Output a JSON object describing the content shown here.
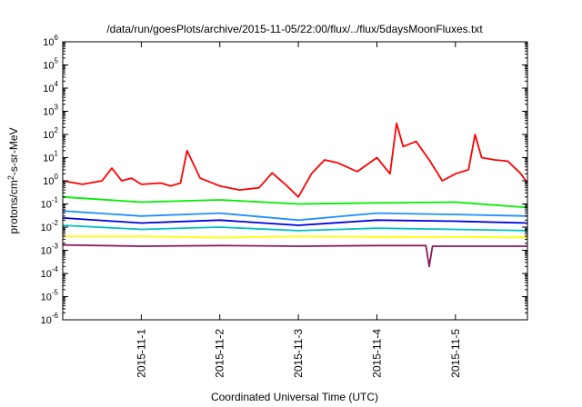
{
  "chart_data": {
    "type": "line",
    "title": "/data/run/goesPlots/archive/2015-11-05/22:00/flux/../flux/5daysMoonFluxes.txt",
    "xlabel": "Coordinated Universal Time (UTC)",
    "ylabel": "protons/cm2-s-sr-MeV",
    "yscale": "log",
    "ylim": [
      1e-06,
      1000000.0
    ],
    "xlim": [
      "2015-10-31T00:00",
      "2015-11-05T22:00"
    ],
    "x_ticks": [
      "2015-11-1",
      "2015-11-2",
      "2015-11-3",
      "2015-11-4",
      "2015-11-5"
    ],
    "y_ticks": [
      {
        "base": "10",
        "exp": "-6"
      },
      {
        "base": "10",
        "exp": "-5"
      },
      {
        "base": "10",
        "exp": "-4"
      },
      {
        "base": "10",
        "exp": "-3"
      },
      {
        "base": "10",
        "exp": "-2"
      },
      {
        "base": "10",
        "exp": "-1"
      },
      {
        "base": "10",
        "exp": "0"
      },
      {
        "base": "10",
        "exp": "1"
      },
      {
        "base": "10",
        "exp": "2"
      },
      {
        "base": "10",
        "exp": "3"
      },
      {
        "base": "10",
        "exp": "4"
      },
      {
        "base": "10",
        "exp": "5"
      },
      {
        "base": "10",
        "exp": "6"
      }
    ],
    "grid": false,
    "legend": "none",
    "series": [
      {
        "color": "#ff0000",
        "x": [
          "2015-10-31T00:00",
          "2015-10-31T06:00",
          "2015-10-31T12:00",
          "2015-10-31T15:00",
          "2015-10-31T18:00",
          "2015-10-31T21:00",
          "2015-11-01T00:00",
          "2015-11-01T06:00",
          "2015-11-01T09:00",
          "2015-11-01T12:00",
          "2015-11-01T14:00",
          "2015-11-01T18:00",
          "2015-11-02T00:00",
          "2015-11-02T06:00",
          "2015-11-02T12:00",
          "2015-11-02T16:00",
          "2015-11-02T20:00",
          "2015-11-03T00:00",
          "2015-11-03T04:00",
          "2015-11-03T08:00",
          "2015-11-03T12:00",
          "2015-11-03T18:00",
          "2015-11-04T00:00",
          "2015-11-04T04:00",
          "2015-11-04T06:00",
          "2015-11-04T08:00",
          "2015-11-04T12:00",
          "2015-11-04T16:00",
          "2015-11-04T20:00",
          "2015-11-05T00:00",
          "2015-11-05T04:00",
          "2015-11-05T06:00",
          "2015-11-05T08:00",
          "2015-11-05T12:00",
          "2015-11-05T16:00",
          "2015-11-05T20:00",
          "2015-11-05T22:00"
        ],
        "values": [
          1.0,
          0.7,
          1.0,
          3.5,
          1.0,
          1.3,
          0.7,
          0.8,
          0.6,
          0.8,
          20,
          1.3,
          0.6,
          0.4,
          0.5,
          2.2,
          0.7,
          0.2,
          2.0,
          8,
          6,
          2.5,
          10,
          2.0,
          300,
          30,
          50,
          8,
          1.0,
          2.0,
          3,
          100,
          10,
          8,
          7,
          2.0,
          0.8
        ]
      },
      {
        "color": "#00ee00",
        "x": [
          "2015-10-31T00:00",
          "2015-11-01T00:00",
          "2015-11-02T00:00",
          "2015-11-03T00:00",
          "2015-11-04T00:00",
          "2015-11-05T00:00",
          "2015-11-05T22:00"
        ],
        "values": [
          0.2,
          0.12,
          0.15,
          0.1,
          0.11,
          0.12,
          0.07
        ]
      },
      {
        "color": "#1e90ff",
        "x": [
          "2015-10-31T00:00",
          "2015-11-01T00:00",
          "2015-11-02T00:00",
          "2015-11-03T00:00",
          "2015-11-04T00:00",
          "2015-11-05T00:00",
          "2015-11-05T22:00"
        ],
        "values": [
          0.05,
          0.03,
          0.04,
          0.02,
          0.04,
          0.035,
          0.03
        ]
      },
      {
        "color": "#0000dd",
        "x": [
          "2015-10-31T00:00",
          "2015-11-01T00:00",
          "2015-11-02T00:00",
          "2015-11-03T00:00",
          "2015-11-04T00:00",
          "2015-11-05T00:00",
          "2015-11-05T22:00"
        ],
        "values": [
          0.025,
          0.015,
          0.02,
          0.012,
          0.02,
          0.018,
          0.015
        ]
      },
      {
        "color": "#00c0c0",
        "x": [
          "2015-10-31T00:00",
          "2015-11-01T00:00",
          "2015-11-02T00:00",
          "2015-11-03T00:00",
          "2015-11-04T00:00",
          "2015-11-05T00:00",
          "2015-11-05T22:00"
        ],
        "values": [
          0.012,
          0.008,
          0.01,
          0.007,
          0.009,
          0.008,
          0.007
        ]
      },
      {
        "color": "#ffff00",
        "x": [
          "2015-10-31T00:00",
          "2015-11-01T00:00",
          "2015-11-02T00:00",
          "2015-11-03T00:00",
          "2015-11-04T00:00",
          "2015-11-05T00:00",
          "2015-11-05T22:00"
        ],
        "values": [
          0.004,
          0.004,
          0.0035,
          0.004,
          0.0038,
          0.0037,
          0.0036
        ]
      },
      {
        "color": "#8b1a5a",
        "x": [
          "2015-10-31T00:00",
          "2015-11-01T00:00",
          "2015-11-02T00:00",
          "2015-11-03T00:00",
          "2015-11-04T00:00",
          "2015-11-04T15:00",
          "2015-11-04T16:00",
          "2015-11-04T17:00",
          "2015-11-05T00:00",
          "2015-11-05T22:00"
        ],
        "values": [
          0.0017,
          0.0015,
          0.0016,
          0.0015,
          0.0016,
          0.0016,
          0.0002,
          0.0015,
          0.0015,
          0.0015
        ]
      }
    ]
  }
}
